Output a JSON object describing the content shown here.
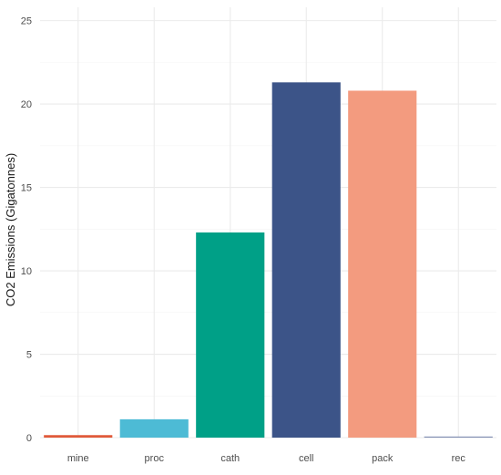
{
  "chart_data": {
    "type": "bar",
    "title": "",
    "xlabel": "",
    "ylabel": "CO2 Emissions (Gigatonnes)",
    "categories": [
      "mine",
      "proc",
      "cath",
      "cell",
      "pack",
      "rec"
    ],
    "values": [
      0.15,
      1.1,
      12.3,
      21.3,
      20.8,
      0.05
    ],
    "colors": [
      "#e05a3a",
      "#4dbbd5",
      "#00a087",
      "#3c5488",
      "#f39b7f",
      "#8491b4"
    ],
    "ylim": [
      0,
      25.8
    ],
    "yticks": [
      0,
      5,
      10,
      15,
      20,
      25
    ],
    "grid": true,
    "legend": "none"
  }
}
